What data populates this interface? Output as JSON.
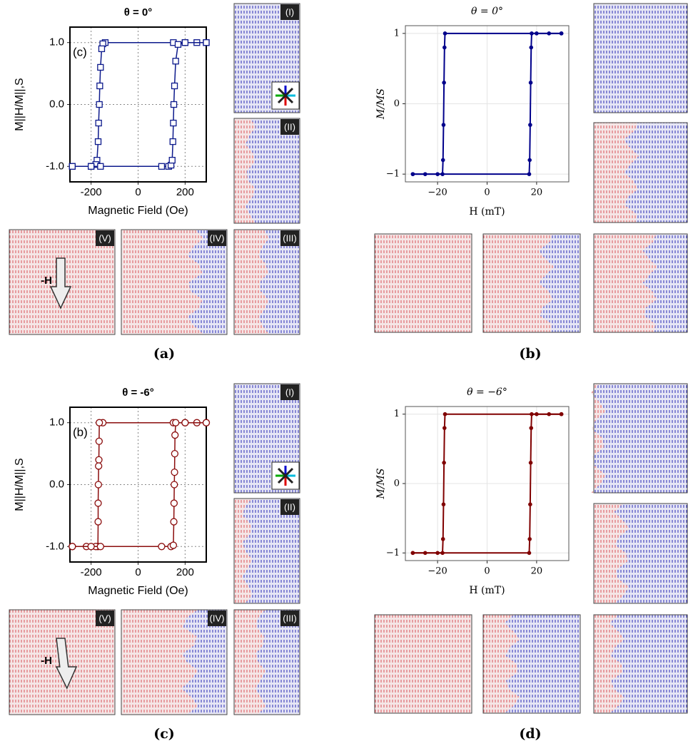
{
  "chart_data": [
    {
      "type": "line",
      "panel_label": "(a)",
      "title": "θ = 0°",
      "xlabel": "Magnetic Field (Oe)",
      "ylabel": "M||H/M||,S",
      "inset_label": "(c)",
      "image_labels": [
        "(I)",
        "(II)",
        "(III)",
        "(IV)",
        "(V)"
      ],
      "field_label": "-H",
      "xlim": [
        -290,
        290
      ],
      "ylim": [
        -1.25,
        1.25
      ],
      "xticks": [
        -200,
        0,
        200
      ],
      "yticks": [
        {
          "value": -1,
          "label": "-1.0"
        },
        {
          "value": 0,
          "label": "0.0"
        },
        {
          "value": 1,
          "label": "1.0"
        }
      ],
      "grid": "dotted",
      "marker": "square",
      "series": [
        {
          "color": "#0d1a8c",
          "x": [
            290,
            250,
            200,
            150,
            -140,
            -150,
            -155,
            -160,
            -163,
            -165,
            -168,
            -170,
            -175,
            -180,
            -200,
            -280
          ],
          "values": [
            1,
            1,
            1,
            1,
            1,
            0.98,
            0.9,
            0.6,
            0.3,
            0,
            -0.3,
            -0.6,
            -0.9,
            -0.97,
            -1,
            -1
          ]
        },
        {
          "color": "#0d1a8c",
          "x": [
            -280,
            -200,
            -160,
            100,
            130,
            140,
            145,
            148,
            150,
            152,
            155,
            160,
            170,
            200,
            290
          ],
          "values": [
            -1,
            -1,
            -1,
            -1,
            -1,
            -0.98,
            -0.9,
            -0.6,
            -0.3,
            0,
            0.3,
            0.7,
            0.97,
            1,
            1
          ]
        }
      ]
    },
    {
      "type": "line",
      "panel_label": "(b)",
      "title": "θ = 0°",
      "xlabel": "H (mT)",
      "ylabel": "M/MS",
      "xlim": [
        -33,
        33
      ],
      "ylim": [
        -1.11,
        1.11
      ],
      "xticks": [
        {
          "value": -20,
          "label": "−20"
        },
        0,
        20
      ],
      "yticks": [
        {
          "value": -1,
          "label": "−1"
        },
        0,
        1
      ],
      "grid": "solid",
      "marker": "dot",
      "series": [
        {
          "color": "#00008b",
          "x": [
            30,
            20,
            -17,
            -17.2,
            -17.4,
            -17.6,
            -17.8,
            -18,
            -25,
            -30
          ],
          "values": [
            1,
            1,
            1,
            0.8,
            0.3,
            -0.3,
            -0.8,
            -1,
            -1,
            -1
          ]
        },
        {
          "color": "#00008b",
          "x": [
            -30,
            -20,
            17,
            17.2,
            17.4,
            17.6,
            17.8,
            18,
            25,
            30
          ],
          "values": [
            -1,
            -1,
            -1,
            -0.8,
            -0.3,
            0.3,
            0.8,
            1,
            1,
            1
          ]
        }
      ]
    },
    {
      "type": "line",
      "panel_label": "(c)",
      "title": "θ = -6°",
      "xlabel": "Magnetic Field (Oe)",
      "ylabel": "M||H/M||,S",
      "inset_label": "(b)",
      "image_labels": [
        "(I)",
        "(II)",
        "(III)",
        "(IV)",
        "(V)"
      ],
      "field_label": "-H",
      "xlim": [
        -290,
        290
      ],
      "ylim": [
        -1.25,
        1.25
      ],
      "xticks": [
        -200,
        0,
        200
      ],
      "yticks": [
        {
          "value": -1,
          "label": "-1.0"
        },
        {
          "value": 0,
          "label": "0.0"
        },
        {
          "value": 1,
          "label": "1.0"
        }
      ],
      "grid": "dotted",
      "marker": "circle",
      "series": [
        {
          "color": "#8b0d0d",
          "x": [
            290,
            250,
            200,
            150,
            -150,
            -165,
            -166,
            -167,
            -168,
            -169,
            -170,
            -170,
            -171,
            -180,
            -220,
            -280
          ],
          "values": [
            1,
            1,
            1,
            1,
            1,
            1,
            0.7,
            0.4,
            0.3,
            0,
            -0.3,
            -0.6,
            -1,
            -1,
            -1,
            -1
          ]
        },
        {
          "color": "#8b0d0d",
          "x": [
            -280,
            -200,
            -160,
            100,
            140,
            150,
            152,
            153,
            154,
            155,
            156,
            157,
            160,
            200,
            290
          ],
          "values": [
            -1,
            -1,
            -1,
            -1,
            -1,
            -0.98,
            -0.6,
            -0.3,
            0,
            0.2,
            0.5,
            0.8,
            1,
            1,
            1
          ]
        }
      ]
    },
    {
      "type": "line",
      "panel_label": "(d)",
      "title": "θ = −6°",
      "xlabel": "H (mT)",
      "ylabel": "M/MS",
      "xlim": [
        -33,
        33
      ],
      "ylim": [
        -1.11,
        1.11
      ],
      "xticks": [
        {
          "value": -20,
          "label": "−20"
        },
        0,
        20
      ],
      "yticks": [
        {
          "value": -1,
          "label": "−1"
        },
        0,
        1
      ],
      "grid": "solid",
      "marker": "dot",
      "series": [
        {
          "color": "#800000",
          "x": [
            30,
            20,
            -17,
            -17.2,
            -17.4,
            -17.6,
            -17.8,
            -18,
            -25,
            -30
          ],
          "values": [
            1,
            1,
            1,
            0.8,
            0.3,
            -0.3,
            -0.8,
            -1,
            -1,
            -1
          ]
        },
        {
          "color": "#800000",
          "x": [
            -30,
            -20,
            17,
            17.2,
            17.4,
            17.6,
            17.8,
            18,
            25,
            30
          ],
          "values": [
            -1,
            -1,
            -1,
            -0.8,
            -0.3,
            0.3,
            0.8,
            1,
            1,
            1
          ]
        }
      ]
    }
  ]
}
